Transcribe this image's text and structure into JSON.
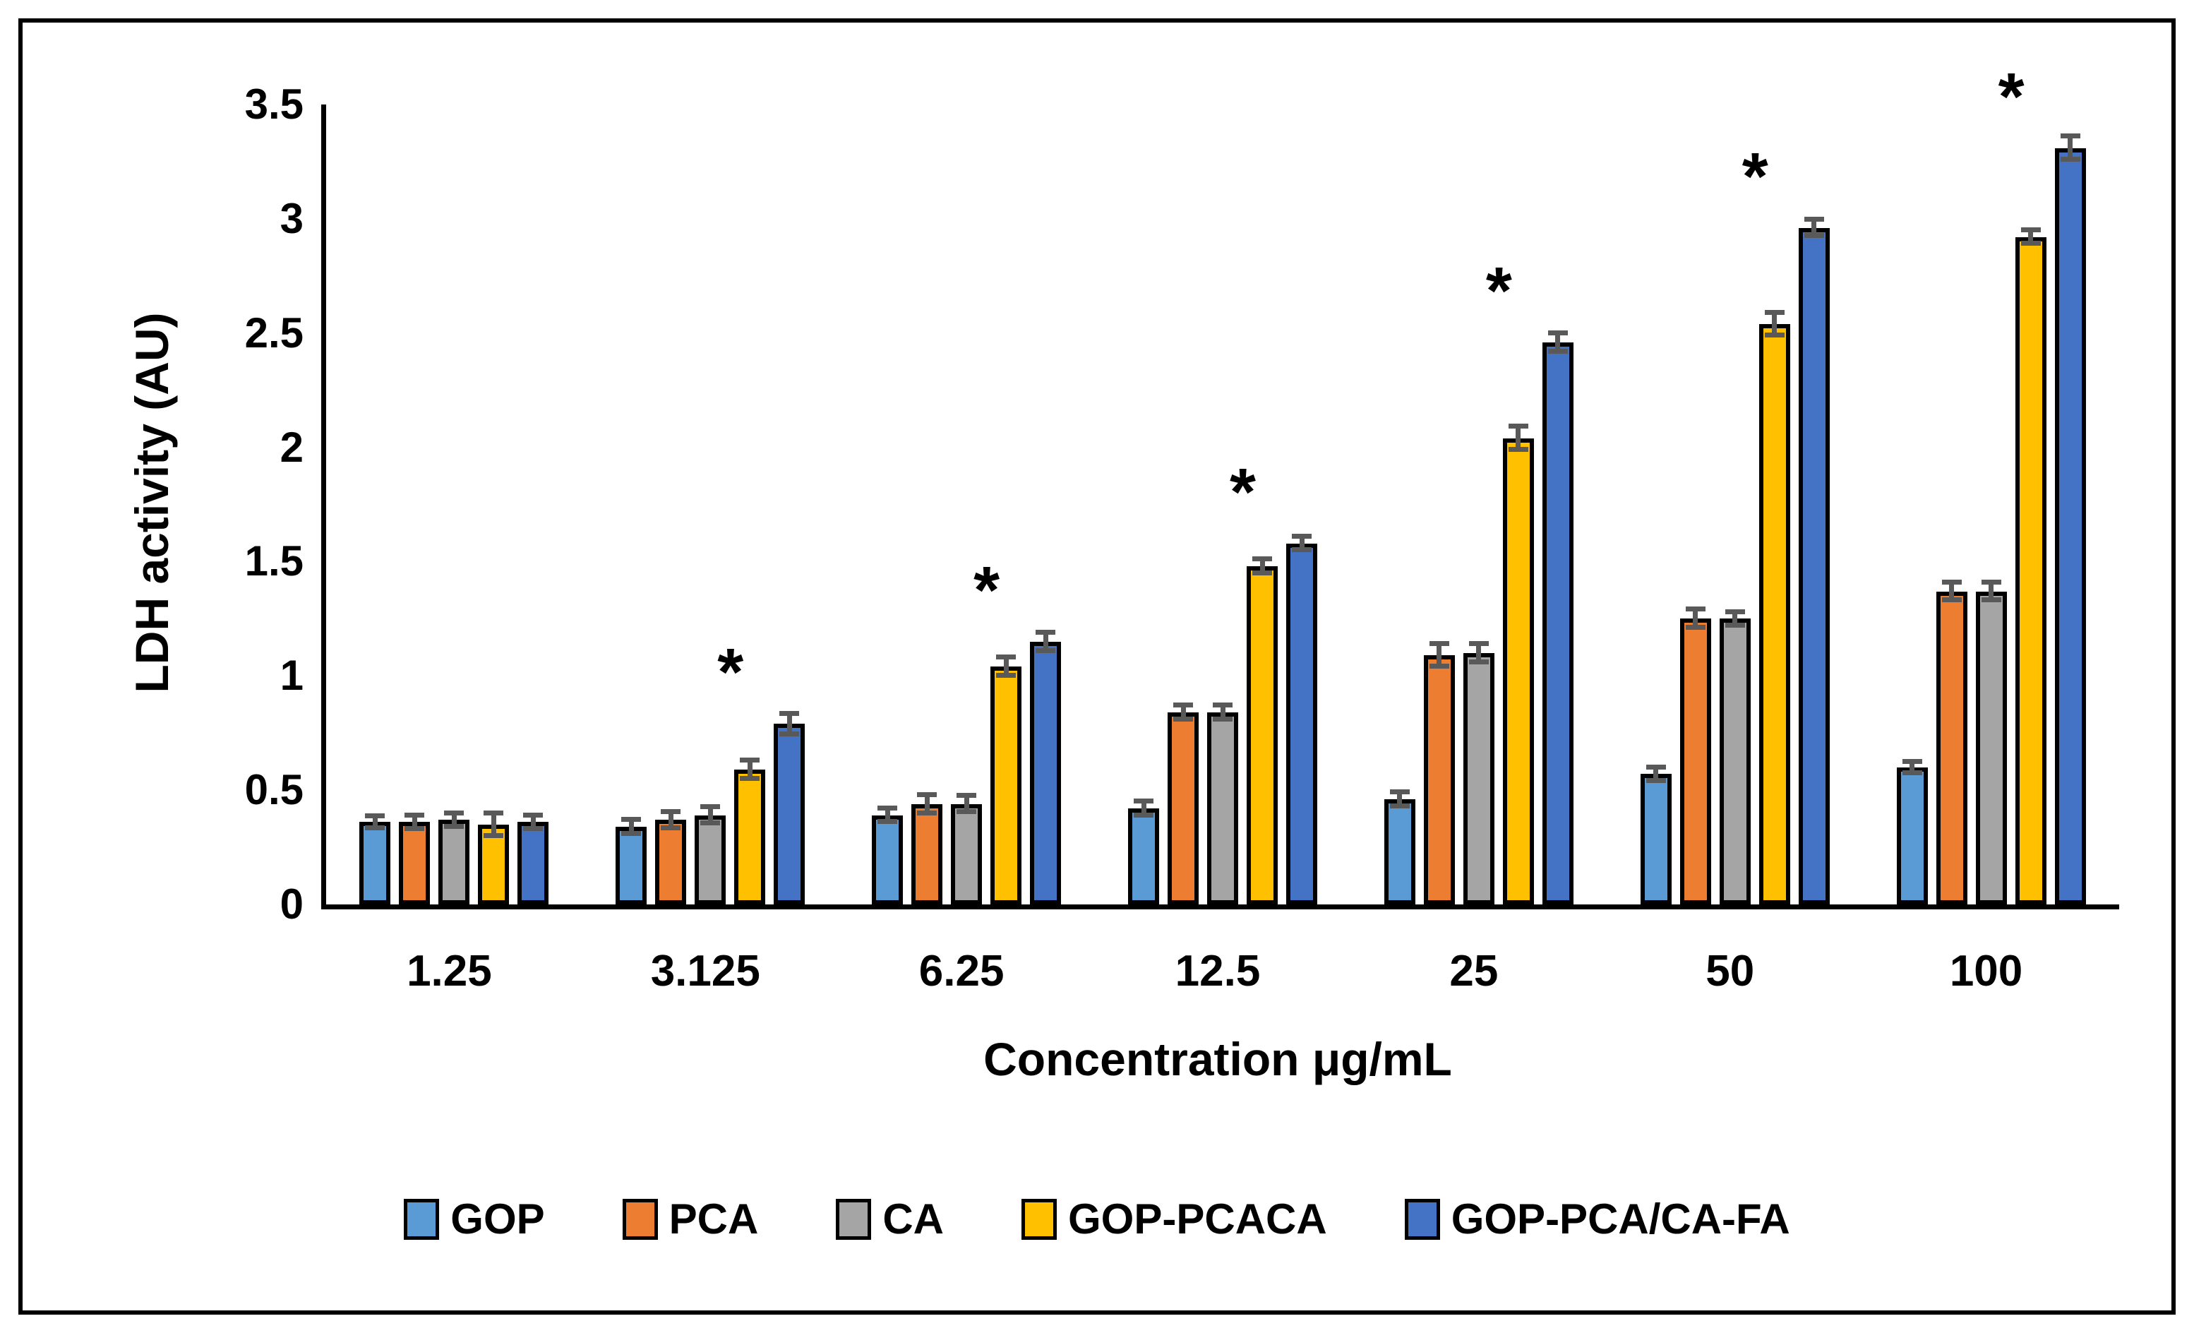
{
  "figure": {
    "x_axis_title": "Concentration μg/mL",
    "y_axis_title": "LDH activity (AU)"
  },
  "chart_data": {
    "type": "bar",
    "title": "",
    "xlabel": "Concentration μg/mL",
    "ylabel": "LDH activity (AU)",
    "ylim": [
      0,
      3.5
    ],
    "ytick_step": 0.5,
    "grid": false,
    "legend_position": "bottom",
    "categories": [
      "1.25",
      "3.125",
      "6.25",
      "12.5",
      "25",
      "50",
      "100"
    ],
    "series": [
      {
        "name": "GOP",
        "color": "#5B9BD5",
        "values": [
          0.36,
          0.34,
          0.39,
          0.42,
          0.46,
          0.57,
          0.6
        ],
        "errors": [
          0.025,
          0.03,
          0.03,
          0.03,
          0.03,
          0.03,
          0.025
        ]
      },
      {
        "name": "PCA",
        "color": "#ED7D31",
        "values": [
          0.36,
          0.37,
          0.44,
          0.84,
          1.09,
          1.25,
          1.37
        ],
        "errors": [
          0.03,
          0.035,
          0.04,
          0.03,
          0.05,
          0.04,
          0.04
        ]
      },
      {
        "name": "CA",
        "color": "#A5A5A5",
        "values": [
          0.37,
          0.39,
          0.44,
          0.84,
          1.1,
          1.25,
          1.37
        ],
        "errors": [
          0.03,
          0.035,
          0.035,
          0.03,
          0.04,
          0.03,
          0.04
        ]
      },
      {
        "name": "GOP-PCACA",
        "color": "#FFC000",
        "values": [
          0.35,
          0.59,
          1.04,
          1.48,
          2.04,
          2.54,
          2.92
        ],
        "errors": [
          0.05,
          0.04,
          0.04,
          0.03,
          0.05,
          0.05,
          0.03
        ]
      },
      {
        "name": "GOP-PCA/CA-FA",
        "color": "#4472C4",
        "values": [
          0.36,
          0.79,
          1.15,
          1.58,
          2.46,
          2.96,
          3.31
        ],
        "errors": [
          0.03,
          0.045,
          0.04,
          0.03,
          0.04,
          0.035,
          0.05
        ]
      }
    ],
    "significance": {
      "symbol": "*",
      "marks_series": "GOP-PCA/CA-FA",
      "per_category": [
        false,
        true,
        true,
        true,
        true,
        true,
        true
      ]
    },
    "error_bar_color": "#595959",
    "bar_border_color": "#000000",
    "axis_color": "#000000"
  }
}
